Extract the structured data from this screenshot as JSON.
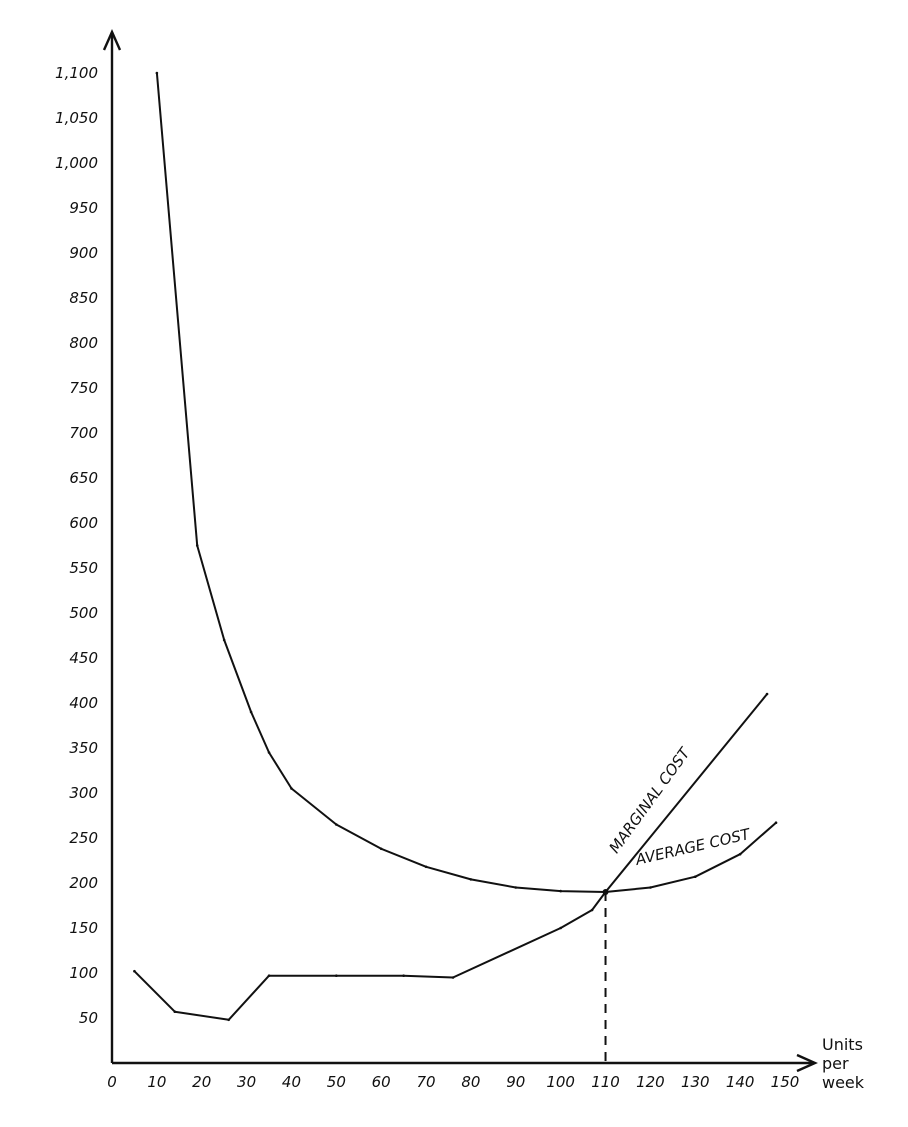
{
  "chart_data": {
    "type": "line",
    "xlabel": [
      "Units",
      "per",
      "week"
    ],
    "x_ticks": [
      "0",
      "10",
      "20",
      "30",
      "40",
      "50",
      "60",
      "70",
      "80",
      "90",
      "100",
      "110",
      "120",
      "130",
      "140",
      "150"
    ],
    "y_ticks": [
      "50",
      "100",
      "150",
      "200",
      "250",
      "300",
      "350",
      "400",
      "450",
      "500",
      "550",
      "600",
      "650",
      "700",
      "750",
      "800",
      "850",
      "900",
      "950",
      "1,000",
      "1,050",
      "1,100"
    ],
    "xlim": [
      0,
      150
    ],
    "ylim": [
      0,
      1100
    ],
    "grid": false,
    "series": [
      {
        "name": "AVERAGE COST",
        "points": [
          [
            10,
            1100
          ],
          [
            19,
            575
          ],
          [
            25,
            470
          ],
          [
            31,
            390
          ],
          [
            35,
            345
          ],
          [
            40,
            305
          ],
          [
            50,
            265
          ],
          [
            60,
            238
          ],
          [
            70,
            218
          ],
          [
            80,
            204
          ],
          [
            90,
            195
          ],
          [
            100,
            191
          ],
          [
            110,
            190
          ],
          [
            120,
            195
          ],
          [
            130,
            207
          ],
          [
            140,
            232
          ],
          [
            148,
            267
          ]
        ]
      },
      {
        "name": "MARGINAL COST",
        "points": [
          [
            5,
            102
          ],
          [
            14,
            57
          ],
          [
            26,
            48
          ],
          [
            35,
            97
          ],
          [
            50,
            97
          ],
          [
            65,
            97
          ],
          [
            76,
            95
          ],
          [
            100,
            150
          ],
          [
            107,
            170
          ],
          [
            110,
            190
          ],
          [
            146,
            410
          ]
        ]
      }
    ],
    "annotations": [
      {
        "text": "MARGINAL COST"
      },
      {
        "text": "AVERAGE COST"
      }
    ],
    "reference_line": {
      "x": 110,
      "y": 190,
      "style": "dashed"
    }
  }
}
